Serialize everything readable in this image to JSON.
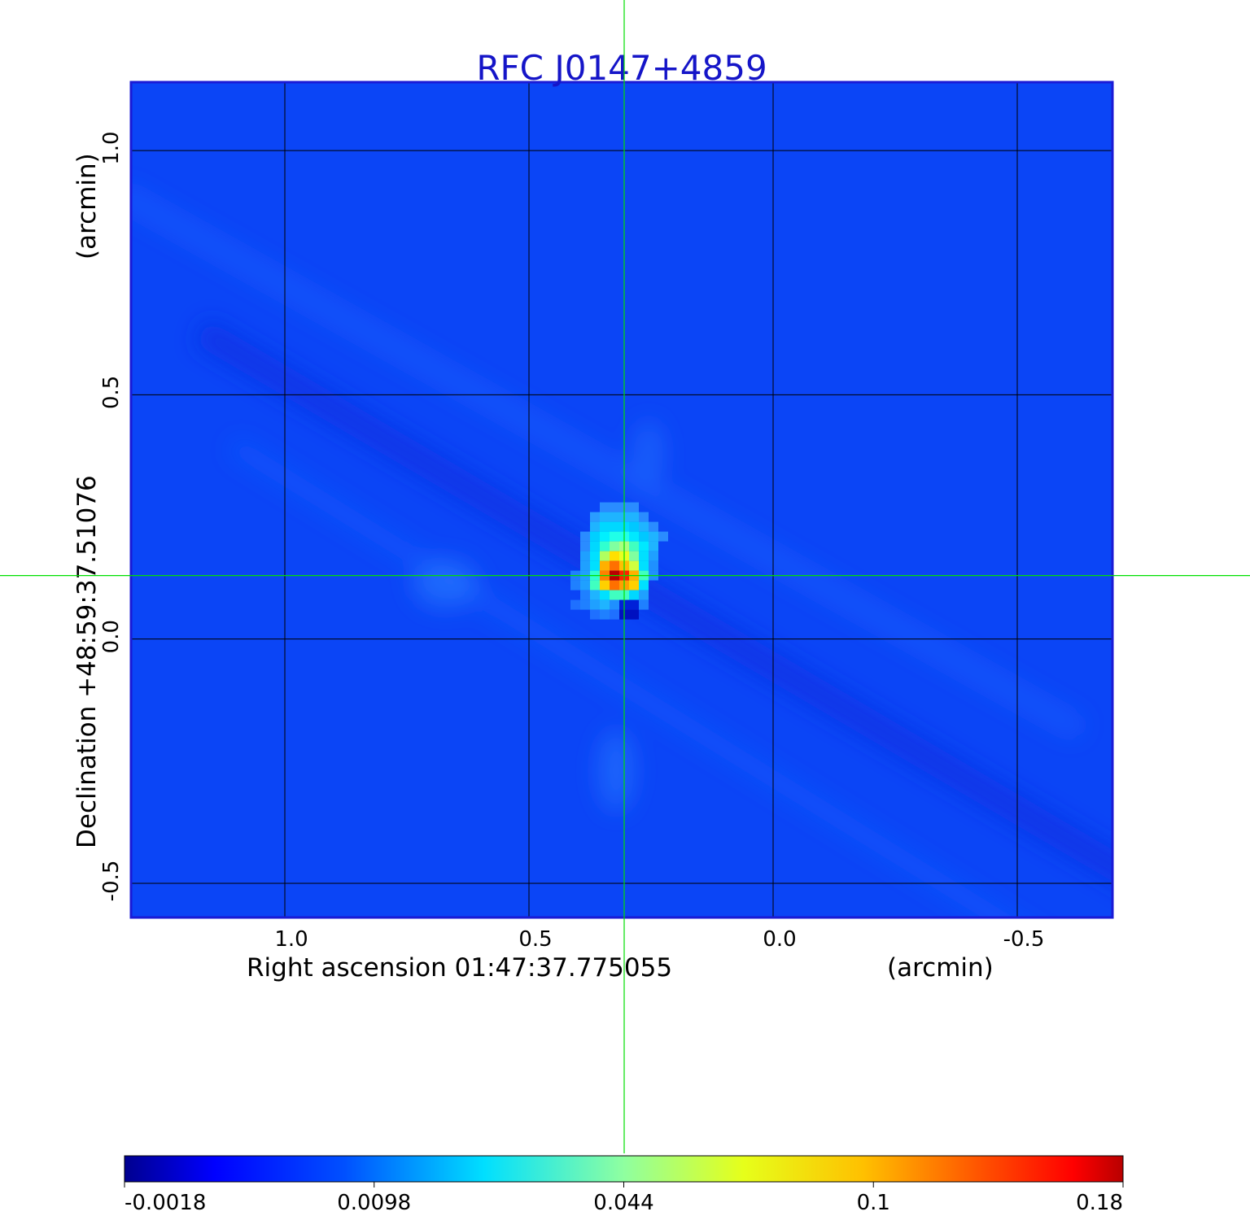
{
  "chart_data": {
    "type": "heatmap",
    "title": "RFC J0147+4859",
    "title_color": "#1515c8",
    "frame_color": "#1a1ad6",
    "grid": true,
    "grid_color": "#000000",
    "crosshair_color": "#00e000",
    "x_axis": {
      "label": "Right ascension  01:47:37.775055",
      "unit_label": "(arcmin)",
      "ticks": [
        {
          "value": 1.0,
          "label": "1.0"
        },
        {
          "value": 0.5,
          "label": "0.5"
        },
        {
          "value": 0.0,
          "label": "0.0"
        },
        {
          "value": -0.5,
          "label": "-0.5"
        }
      ],
      "range": [
        1.315,
        -0.695
      ],
      "direction": "decreasing to the right"
    },
    "y_axis": {
      "label": "Declination  +48:59:37.51076",
      "unit_label": "(arcmin)",
      "ticks": [
        {
          "value": 1.0,
          "label": "1.0"
        },
        {
          "value": 0.5,
          "label": "0.5"
        },
        {
          "value": 0.0,
          "label": "0.0"
        },
        {
          "value": -0.5,
          "label": "-0.5"
        }
      ],
      "range": [
        -0.57,
        1.14
      ]
    },
    "crosshair": {
      "x": 0.305,
      "y": 0.13
    },
    "source_peak": {
      "x": 0.305,
      "y": 0.13,
      "value": 0.18
    },
    "sidelobe_orientation": "diagonal from upper-left to lower-right",
    "colorbar": {
      "colormap": "jet",
      "ticks": [
        {
          "label": "-0.0018",
          "value": -0.0018
        },
        {
          "label": "0.0098",
          "value": 0.0098
        },
        {
          "label": "0.044",
          "value": 0.044
        },
        {
          "label": "0.1",
          "value": 0.1
        },
        {
          "label": "0.18",
          "value": 0.18
        }
      ],
      "range": [
        -0.0018,
        0.18
      ]
    }
  }
}
